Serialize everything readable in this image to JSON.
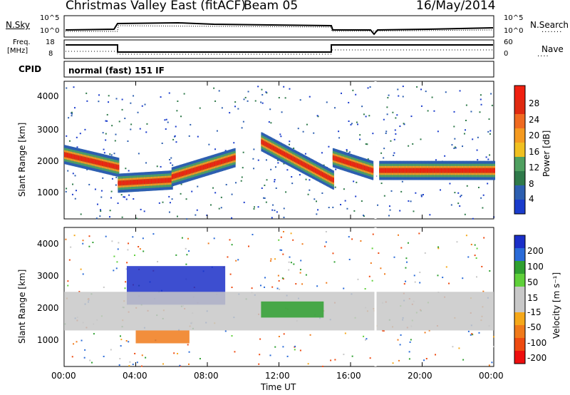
{
  "header": {
    "title": "Christmas Valley East (fitACF)",
    "beam": "Beam 05",
    "date": "16/May/2014"
  },
  "top_panels": {
    "nsky_label": "N.Sky",
    "nsky_ticks": [
      "10^5",
      "10^0"
    ],
    "nsearch_ticks": [
      "10^5",
      "10^0"
    ],
    "nsearch_label": "N.Search",
    "freq_label_line1": "Freq.",
    "freq_label_line2": "[MHz]",
    "freq_ticks": [
      "18",
      "8"
    ],
    "nave_ticks": [
      "60",
      "0"
    ],
    "nave_label": "Nave",
    "cpid_label": "CPID",
    "cpid_value": "normal (fast) 151 IF"
  },
  "colors": {
    "power_scale": [
      "#1a3ccc",
      "#2d5fb0",
      "#2f7a4a",
      "#4fa060",
      "#f0c020",
      "#f59a20",
      "#f06a20",
      "#e02a10",
      "#f02010"
    ],
    "velocity_scale": [
      "#1b2fc8",
      "#2a6bd8",
      "#2fa030",
      "#5fd03a",
      "#c8c8c8",
      "#c8c8c8",
      "#f5a81a",
      "#f07a1a",
      "#ee4a10",
      "#ee0e0e"
    ]
  },
  "chart_data": [
    {
      "type": "heatmap",
      "name": "Power",
      "xlabel": "Time UT",
      "ylabel": "Slant Range [km]",
      "ylim": [
        180,
        4500
      ],
      "xlim": [
        "00:00",
        "24:00"
      ],
      "y_ticks": [
        "4000",
        "3000",
        "2000",
        "1000"
      ],
      "colorbar_label": "Power [dB]",
      "colorbar_ticks": [
        "28",
        "24",
        "20",
        "16",
        "12",
        "8",
        "4"
      ],
      "colorbar_range": [
        0,
        32
      ],
      "bands": [
        {
          "t_start": 0.0,
          "t_end": 3.0,
          "range_start": 2200,
          "range_end": 1800,
          "peak_db": 28
        },
        {
          "t_start": 3.0,
          "t_end": 6.0,
          "range_start": 1300,
          "range_end": 1400,
          "peak_db": 28
        },
        {
          "t_start": 6.0,
          "t_end": 9.5,
          "range_start": 1500,
          "range_end": 2100,
          "peak_db": 28
        },
        {
          "t_start": 11.0,
          "t_end": 15.0,
          "range_start": 2600,
          "range_end": 1400,
          "peak_db": 28
        },
        {
          "t_start": 15.0,
          "t_end": 17.2,
          "range_start": 2100,
          "range_end": 1700,
          "peak_db": 28
        },
        {
          "t_start": 17.6,
          "t_end": 24.0,
          "range_start": 1700,
          "range_end": 1700,
          "peak_db": 28
        }
      ]
    },
    {
      "type": "heatmap",
      "name": "Velocity",
      "xlabel": "Time UT",
      "ylabel": "Slant Range [km]",
      "ylim": [
        180,
        4500
      ],
      "xlim": [
        "00:00",
        "24:00"
      ],
      "y_ticks": [
        "4000",
        "3000",
        "2000",
        "1000"
      ],
      "x_ticks": [
        "00:00",
        "04:00",
        "08:00",
        "12:00",
        "16:00",
        "20:00",
        "00:00"
      ],
      "colorbar_label": "Velocity [m s⁻¹]",
      "colorbar_ticks": [
        "200",
        "100",
        "50",
        "15",
        "-15",
        "-50",
        "-100",
        "-200"
      ],
      "colorbar_range": [
        -250,
        250
      ],
      "regions": [
        {
          "t_start": 3.5,
          "t_end": 9.0,
          "range_low": 2100,
          "range_high": 3300,
          "velocity": 200
        },
        {
          "t_start": 0.0,
          "t_end": 24.0,
          "range_low": 1300,
          "range_high": 2500,
          "velocity": 0
        },
        {
          "t_start": 11.0,
          "t_end": 14.5,
          "range_low": 1700,
          "range_high": 2200,
          "velocity": 60
        },
        {
          "t_start": 4.0,
          "t_end": 7.0,
          "range_low": 900,
          "range_high": 1300,
          "velocity": -40
        }
      ]
    }
  ]
}
